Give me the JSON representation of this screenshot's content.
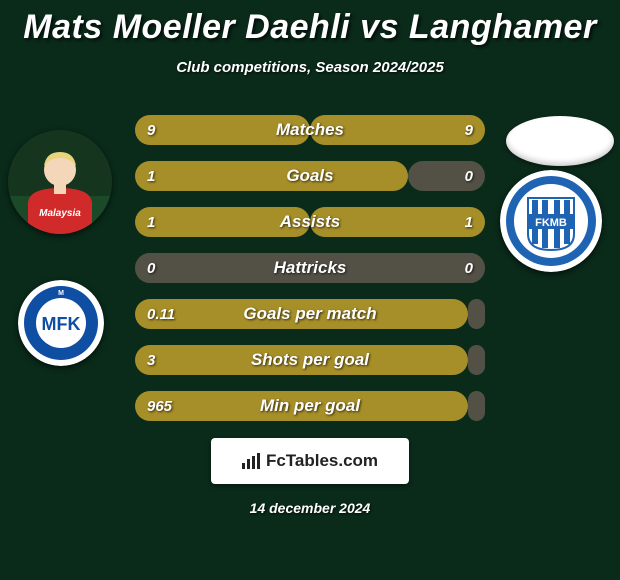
{
  "title": "Mats Moeller Daehli vs Langhamer",
  "subtitle": "Club competitions, Season 2024/2025",
  "date": "14 december 2024",
  "brand": "FcTables.com",
  "colors": {
    "background": "#0a2a1a",
    "bar_on": "#a68e28",
    "bar_off": "#535046",
    "text": "#ffffff"
  },
  "avatars": {
    "left_player": {
      "shirt_color": "#d02a2a",
      "skin": "#f3d7b8",
      "hair": "#e8d47a",
      "bg": "#183a25"
    },
    "left_badge": {
      "outer": "#ffffff",
      "ring": "#0e4ea3",
      "letters": "MFK"
    },
    "right_badge": {
      "outer": "#ffffff",
      "stripes": "#1f64b3",
      "text": "FKMB"
    }
  },
  "bars": [
    {
      "label": "Matches",
      "left_val": "9",
      "right_val": "9",
      "left_on": true,
      "right_on": true,
      "split": 50
    },
    {
      "label": "Goals",
      "left_val": "1",
      "right_val": "0",
      "left_on": true,
      "right_on": false,
      "split": 78
    },
    {
      "label": "Assists",
      "left_val": "1",
      "right_val": "1",
      "left_on": true,
      "right_on": true,
      "split": 50
    },
    {
      "label": "Hattricks",
      "left_val": "0",
      "right_val": "0",
      "left_on": false,
      "right_on": false,
      "split": 50
    },
    {
      "label": "Goals per match",
      "left_val": "0.11",
      "right_val": "",
      "left_on": true,
      "right_on": false,
      "split": 95
    },
    {
      "label": "Shots per goal",
      "left_val": "3",
      "right_val": "",
      "left_on": true,
      "right_on": false,
      "split": 95
    },
    {
      "label": "Min per goal",
      "left_val": "965",
      "right_val": "",
      "left_on": true,
      "right_on": false,
      "split": 95
    }
  ]
}
